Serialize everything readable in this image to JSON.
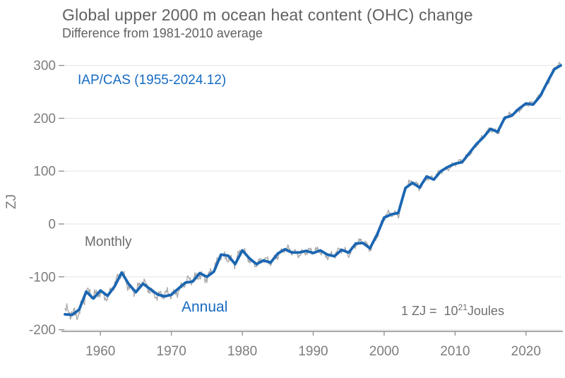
{
  "chart_data": {
    "type": "line",
    "title": "Global upper 2000 m ocean heat content (OHC) change",
    "subtitle": "Difference from 1981-2010 average",
    "dataset_label": "IAP/CAS (1955-2024.12)",
    "ylabel": "ZJ",
    "series_labels": {
      "monthly": "Monthly",
      "annual": "Annual"
    },
    "unit_note": {
      "base": "1 ZJ =  10",
      "exponent": "21",
      "suffix": "Joules"
    },
    "x_ticks": [
      1960,
      1970,
      1980,
      1990,
      2000,
      2010,
      2020
    ],
    "y_ticks": [
      300,
      200,
      100,
      0,
      -100,
      -200
    ],
    "xlim": [
      1955,
      2025
    ],
    "ylim": [
      -200,
      310
    ],
    "grid": "horizontal-only",
    "legend_position": "none (inline text labels)",
    "colors": {
      "annual_line": "#1b66b2",
      "blue_text": "#176bc2",
      "monthly_line": "#a8a8a8",
      "monthly_text": "#6b6b6b",
      "title_text": "#616161",
      "tick_text": "#7d7d7d",
      "axis_line": "#8c8c8c",
      "gridline": "#e9e9e9",
      "unit_text": "#6f6f6f"
    },
    "annual": {
      "name": "Annual",
      "start_year": 1955,
      "values": [
        -171,
        -172,
        -162,
        -128,
        -141,
        -126,
        -136,
        -118,
        -92,
        -114,
        -129,
        -113,
        -123,
        -133,
        -137,
        -134,
        -122,
        -111,
        -109,
        -93,
        -100,
        -90,
        -58,
        -60,
        -76,
        -50,
        -65,
        -76,
        -69,
        -73,
        -56,
        -48,
        -54,
        -54,
        -51,
        -55,
        -50,
        -58,
        -61,
        -49,
        -54,
        -37,
        -36,
        -46,
        -20,
        12,
        18,
        21,
        68,
        78,
        69,
        90,
        84,
        100,
        108,
        114,
        117,
        134,
        151,
        164,
        180,
        174,
        201,
        205,
        218,
        228,
        226,
        242,
        268,
        293
      ],
      "end_point": {
        "year": 2024.9,
        "value": 300
      }
    },
    "monthly": {
      "name": "Monthly",
      "start": 1955.0,
      "end": 2024.92,
      "per_year": 12,
      "description": "monthly values oscillate around the annual mean",
      "amplitude_eras": [
        [
          1958,
          16
        ],
        [
          1980,
          12
        ],
        [
          2005,
          9
        ],
        [
          2026,
          6.5
        ]
      ],
      "wave_components": [
        [
          0.52,
          0.5,
          0.0
        ],
        [
          1.63,
          0.3,
          2.0
        ],
        [
          0.151,
          0.4,
          1.0
        ],
        [
          2.4,
          0.22,
          0.7
        ]
      ]
    }
  }
}
